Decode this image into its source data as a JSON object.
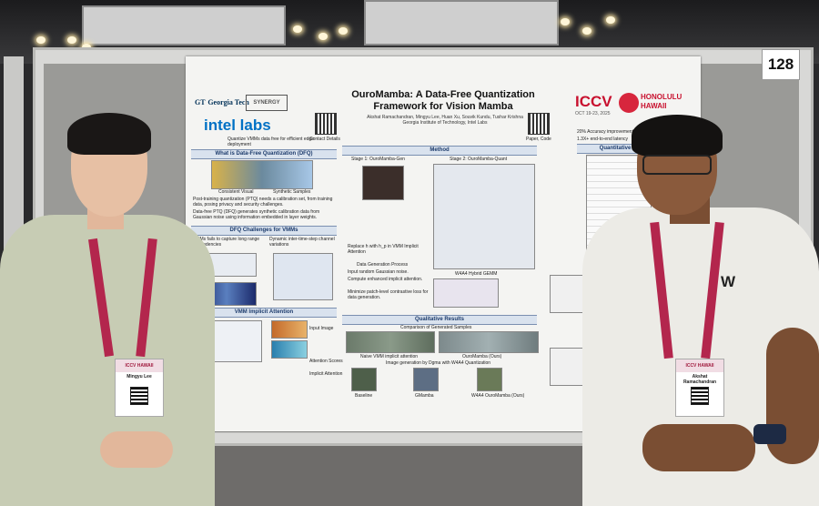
{
  "booth": {
    "number": "128"
  },
  "poster": {
    "title": "OuroMamba: A Data-Free Quantization Framework for Vision Mamba",
    "authors": "Akshat Ramachandran, Mingyu Lee, Huan Xu, Souvik Kundu, Tushar Krishna",
    "affiliation": "Georgia Institute of Technology, Intel Labs",
    "logos": {
      "gt": "Georgia Tech",
      "gt_mark": "GT",
      "synergy": "SYNERGY",
      "intel": "intel labs"
    },
    "conference": {
      "name": "ICCV",
      "location": "HONOLULU HAWAII",
      "dates": "OCT 19-23, 2025"
    },
    "qr_labels": {
      "contact": "Contact Details",
      "paper": "Paper, Code"
    },
    "subtitle_left": "Quantize VMMs data free for efficient edge deployment",
    "sections": {
      "dfq": "What is Data-Free Quantization (DFQ)",
      "challenges": "DFQ Challenges for VMMs",
      "attention": "VMM Implicit Attention",
      "method": "Method",
      "stage1": "Stage 1: OuroMamba-Gen",
      "stage2": "Stage 2: OuroMamba-Quant",
      "results": "Qualitative Results",
      "quant": "Quantitative",
      "datagen": "Data Generation Process",
      "gemm": "W4A4 Hybrid GEMM"
    },
    "captions": {
      "img_left": "Consistent Visual",
      "img_right": "Synthetic Samples",
      "input_image": "Input Image",
      "attention_scores": "Attention Scores",
      "implicit_attention": "Implicit Attention",
      "baseline": "Baseline",
      "ours": "OuroMamba (Ours)",
      "w4a4": "W4A4 OuroMamba (Ours)",
      "naive": "Naive VMM implicit attention",
      "comparison": "Comparison of Generated Samples",
      "image_gen": "Image generation by Dgma with W4A4 Quantization",
      "gmamba": "GMamba"
    },
    "bullets": {
      "dfq1": "Post-training quantization (PTQ) needs a calibration set, from training data, posing privacy and security challenges.",
      "dfq2": "Data-free PTQ (DFQ) generates synthetic calibration data from Gaussian noise using information embedded in layer weights.",
      "ch1": "VMMs fails to capture long range dependencies",
      "ch2": "Dynamic inter-time-step channel variations",
      "gen1": "Input random Gaussian noise.",
      "gen2": "Compute enhanced implicit attention.",
      "gen3": "Minimize patch-level contrastive loss for data generation.",
      "gen4": "Replace h with h_p in VMM Implicit Attention",
      "accuracy": "20% Accuracy improvement",
      "speed": "1.3X+ end-to-end latency"
    }
  },
  "badges": {
    "left": {
      "event": "ICCV HAWAII",
      "name": "Mingyu Lee"
    },
    "right": {
      "event": "ICCV HAWAII",
      "name": "Akshat Ramachandran"
    }
  },
  "colors": {
    "accent_red": "#c8102e",
    "intel_blue": "#0071c5",
    "lanyard": "#b3264d"
  }
}
